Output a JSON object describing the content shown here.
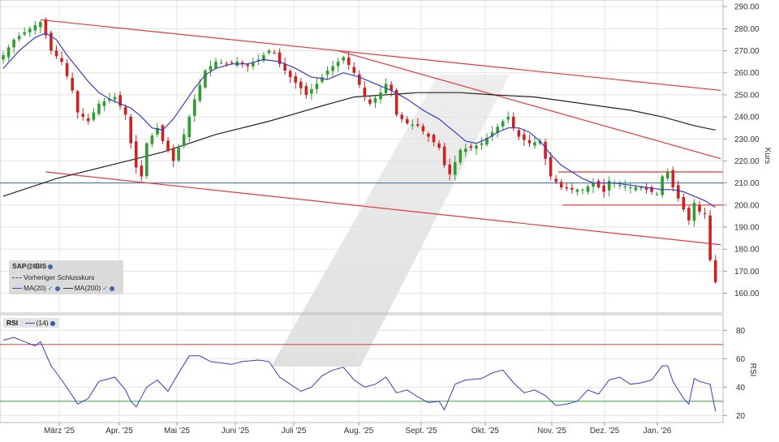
{
  "chart_data": [
    {
      "type": "candlestick",
      "symbol": "SAP@IBIS",
      "ylabel": "Kurs",
      "ylim": [
        151,
        293
      ],
      "y_ticks": [
        160,
        170,
        180,
        190,
        200,
        210,
        220,
        230,
        240,
        250,
        260,
        270,
        280,
        290
      ],
      "y_tick_labels": [
        "160.00",
        "170.00",
        "180.00",
        "190.00",
        "200.00",
        "210.00",
        "220.00",
        "230.00",
        "240.00",
        "250.00",
        "260.00",
        "270.00",
        "280.00",
        "290.00"
      ],
      "x_tick_labels": [
        "März '25",
        "Apr. '25",
        "Mai '25",
        "Juni '25",
        "Juli '25",
        "Aug. '25",
        "Sept. '25",
        "Okt. '25",
        "Nov. '25",
        "Dez. '25",
        "Jan. '26"
      ],
      "legend": {
        "symbol": "SAP@IBIS",
        "prev_close": "Vorheriger Schlusskurs",
        "ma20": "MA(20)",
        "ma200": "MA(200)"
      },
      "colors": {
        "up": "#2e9e2e",
        "down": "#cc2222",
        "ma20": "#3a3ac8",
        "ma200": "#222222",
        "trend": "#e83838",
        "level": "#2d6fa8"
      },
      "close_points": [
        [
          0,
          268
        ],
        [
          2,
          275
        ],
        [
          5,
          280
        ],
        [
          7,
          283
        ],
        [
          8,
          277
        ],
        [
          9,
          270
        ],
        [
          11,
          265
        ],
        [
          13,
          252
        ],
        [
          14,
          242
        ],
        [
          16,
          238
        ],
        [
          18,
          246
        ],
        [
          21,
          249
        ],
        [
          23,
          241
        ],
        [
          24,
          228
        ],
        [
          25,
          217
        ],
        [
          26,
          213
        ],
        [
          27,
          228
        ],
        [
          29,
          235
        ],
        [
          30,
          229
        ],
        [
          32,
          220
        ],
        [
          34,
          232
        ],
        [
          36,
          248
        ],
        [
          38,
          261
        ],
        [
          40,
          265
        ],
        [
          42,
          264
        ],
        [
          44,
          265
        ],
        [
          46,
          263
        ],
        [
          48,
          266
        ],
        [
          50,
          270
        ],
        [
          51,
          269
        ],
        [
          52,
          264
        ],
        [
          54,
          258
        ],
        [
          56,
          253
        ],
        [
          57,
          250
        ],
        [
          59,
          255
        ],
        [
          61,
          261
        ],
        [
          63,
          265
        ],
        [
          64,
          267
        ],
        [
          66,
          260
        ],
        [
          68,
          249
        ],
        [
          69,
          246
        ],
        [
          71,
          251
        ],
        [
          72,
          255
        ],
        [
          73,
          252
        ],
        [
          74,
          241
        ],
        [
          76,
          237
        ],
        [
          78,
          236
        ],
        [
          80,
          231
        ],
        [
          82,
          226
        ],
        [
          83,
          218
        ],
        [
          84,
          214
        ],
        [
          86,
          225
        ],
        [
          88,
          226
        ],
        [
          90,
          228
        ],
        [
          92,
          233
        ],
        [
          94,
          238
        ],
        [
          95,
          240
        ],
        [
          96,
          235
        ],
        [
          97,
          231
        ],
        [
          99,
          228
        ],
        [
          101,
          229
        ],
        [
          102,
          221
        ],
        [
          103,
          213
        ],
        [
          105,
          208
        ],
        [
          107,
          207
        ],
        [
          109,
          207
        ],
        [
          111,
          210
        ],
        [
          113,
          206
        ],
        [
          114,
          211
        ],
        [
          116,
          209
        ],
        [
          118,
          208
        ],
        [
          120,
          208
        ],
        [
          122,
          206
        ],
        [
          123,
          205
        ],
        [
          124,
          213
        ],
        [
          125,
          215
        ],
        [
          126,
          208
        ],
        [
          127,
          203
        ],
        [
          128,
          198
        ],
        [
          129,
          193
        ],
        [
          130,
          201
        ],
        [
          131,
          197
        ],
        [
          132,
          196
        ],
        [
          133,
          175
        ],
        [
          134,
          165
        ]
      ],
      "ma20_points": [
        [
          0,
          262
        ],
        [
          3,
          270
        ],
        [
          6,
          276
        ],
        [
          8,
          278
        ],
        [
          10,
          275
        ],
        [
          12,
          268
        ],
        [
          14,
          262
        ],
        [
          16,
          256
        ],
        [
          18,
          251
        ],
        [
          20,
          248
        ],
        [
          22,
          246
        ],
        [
          24,
          244
        ],
        [
          26,
          240
        ],
        [
          28,
          235
        ],
        [
          30,
          234
        ],
        [
          32,
          239
        ],
        [
          34,
          246
        ],
        [
          36,
          253
        ],
        [
          38,
          259
        ],
        [
          40,
          262
        ],
        [
          43,
          264
        ],
        [
          46,
          264
        ],
        [
          49,
          266
        ],
        [
          52,
          265
        ],
        [
          55,
          262
        ],
        [
          58,
          258
        ],
        [
          61,
          257
        ],
        [
          64,
          260
        ],
        [
          67,
          258
        ],
        [
          70,
          255
        ],
        [
          73,
          252
        ],
        [
          76,
          248
        ],
        [
          79,
          243
        ],
        [
          82,
          239
        ],
        [
          85,
          233
        ],
        [
          87,
          229
        ],
        [
          89,
          228
        ],
        [
          91,
          230
        ],
        [
          93,
          233
        ],
        [
          95,
          235
        ],
        [
          97,
          235
        ],
        [
          99,
          233
        ],
        [
          101,
          229
        ],
        [
          103,
          223
        ],
        [
          105,
          218
        ],
        [
          107,
          215
        ],
        [
          109,
          212
        ],
        [
          111,
          210
        ],
        [
          113,
          210
        ],
        [
          115,
          210
        ],
        [
          118,
          209
        ],
        [
          121,
          208
        ],
        [
          124,
          207
        ],
        [
          126,
          207
        ],
        [
          128,
          206
        ],
        [
          130,
          204
        ],
        [
          132,
          202
        ],
        [
          134,
          199
        ]
      ],
      "ma200_points": [
        [
          0,
          204
        ],
        [
          10,
          212
        ],
        [
          20,
          218
        ],
        [
          30,
          224
        ],
        [
          40,
          232
        ],
        [
          50,
          238
        ],
        [
          60,
          245
        ],
        [
          66,
          249
        ],
        [
          72,
          250
        ],
        [
          78,
          251
        ],
        [
          86,
          251
        ],
        [
          92,
          250
        ],
        [
          100,
          249
        ],
        [
          106,
          247
        ],
        [
          112,
          245
        ],
        [
          118,
          243
        ],
        [
          124,
          240
        ],
        [
          130,
          236
        ],
        [
          134,
          234
        ]
      ],
      "trendlines": [
        [
          [
            7,
            284
          ],
          [
            135,
            252
          ]
        ],
        [
          [
            63,
            270
          ],
          [
            135,
            221
          ]
        ],
        [
          [
            8,
            215
          ],
          [
            135,
            182
          ]
        ]
      ],
      "levels": [
        210,
        215,
        200
      ]
    },
    {
      "type": "line",
      "title": "RSI",
      "series": [
        {
          "name": "(14)"
        }
      ],
      "ylabel": "RSI",
      "ylim": [
        15,
        91
      ],
      "y_ticks": [
        20,
        40,
        60,
        80
      ],
      "y_tick_labels": [
        "20",
        "40",
        "60",
        "80"
      ],
      "reference_lines": [
        70,
        30
      ],
      "values": [
        [
          0,
          73
        ],
        [
          2,
          75
        ],
        [
          4,
          72
        ],
        [
          6,
          69
        ],
        [
          7,
          72
        ],
        [
          9,
          55
        ],
        [
          11,
          45
        ],
        [
          13,
          34
        ],
        [
          14,
          28
        ],
        [
          16,
          32
        ],
        [
          18,
          44
        ],
        [
          21,
          47
        ],
        [
          23,
          38
        ],
        [
          24,
          30
        ],
        [
          25,
          26
        ],
        [
          27,
          40
        ],
        [
          29,
          45
        ],
        [
          31,
          37
        ],
        [
          33,
          50
        ],
        [
          35,
          62
        ],
        [
          37,
          62
        ],
        [
          39,
          58
        ],
        [
          41,
          57
        ],
        [
          43,
          56
        ],
        [
          45,
          58
        ],
        [
          48,
          59
        ],
        [
          50,
          58
        ],
        [
          52,
          47
        ],
        [
          54,
          42
        ],
        [
          56,
          37
        ],
        [
          58,
          40
        ],
        [
          60,
          48
        ],
        [
          62,
          52
        ],
        [
          64,
          54
        ],
        [
          66,
          45
        ],
        [
          68,
          40
        ],
        [
          70,
          42
        ],
        [
          72,
          47
        ],
        [
          74,
          36
        ],
        [
          76,
          38
        ],
        [
          78,
          33
        ],
        [
          80,
          29
        ],
        [
          82,
          30
        ],
        [
          83,
          24
        ],
        [
          85,
          42
        ],
        [
          87,
          45
        ],
        [
          90,
          46
        ],
        [
          92,
          50
        ],
        [
          94,
          52
        ],
        [
          96,
          43
        ],
        [
          98,
          36
        ],
        [
          100,
          38
        ],
        [
          102,
          34
        ],
        [
          104,
          27
        ],
        [
          106,
          28
        ],
        [
          108,
          30
        ],
        [
          110,
          38
        ],
        [
          112,
          35
        ],
        [
          114,
          45
        ],
        [
          116,
          47
        ],
        [
          118,
          42
        ],
        [
          120,
          43
        ],
        [
          122,
          45
        ],
        [
          124,
          55
        ],
        [
          125,
          55
        ],
        [
          126,
          44
        ],
        [
          128,
          32
        ],
        [
          129,
          28
        ],
        [
          130,
          46
        ],
        [
          131,
          44
        ],
        [
          133,
          42
        ],
        [
          134,
          23
        ]
      ]
    }
  ]
}
